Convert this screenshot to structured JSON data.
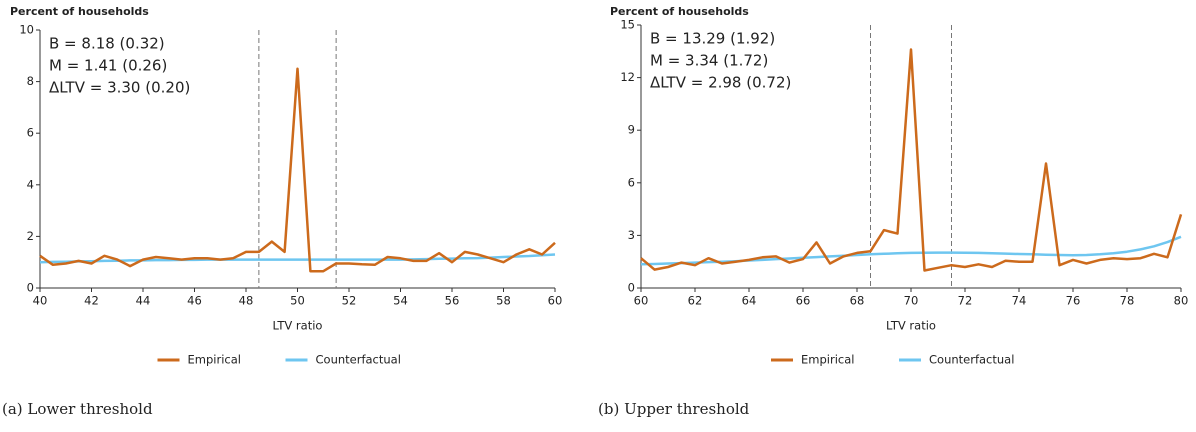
{
  "chart_data": [
    {
      "type": "line",
      "y_title": "Percent of households",
      "x_title": "LTV ratio",
      "caption": "(a) Lower threshold",
      "annotations": [
        "B = 8.18 (0.32)",
        "M = 1.41 (0.26)",
        "ΔLTV = 3.30 (0.20)"
      ],
      "x": [
        40,
        40.5,
        41,
        41.5,
        42,
        42.5,
        43,
        43.5,
        44,
        44.5,
        45,
        45.5,
        46,
        46.5,
        47,
        47.5,
        48,
        48.5,
        49,
        49.5,
        50,
        50.5,
        51,
        51.5,
        52,
        52.5,
        53,
        53.5,
        54,
        54.5,
        55,
        55.5,
        56,
        56.5,
        57,
        57.5,
        58,
        58.5,
        59,
        59.5,
        60
      ],
      "series": [
        {
          "name": "Empirical",
          "color": "#cc6a1c",
          "values": [
            1.25,
            0.9,
            0.95,
            1.05,
            0.95,
            1.25,
            1.1,
            0.85,
            1.1,
            1.2,
            1.15,
            1.1,
            1.15,
            1.15,
            1.1,
            1.15,
            1.4,
            1.4,
            1.8,
            1.4,
            8.5,
            0.65,
            0.65,
            0.95,
            0.95,
            0.92,
            0.9,
            1.2,
            1.15,
            1.05,
            1.05,
            1.35,
            1.0,
            1.4,
            1.3,
            1.15,
            1.0,
            1.3,
            1.5,
            1.3,
            1.75
          ]
        },
        {
          "name": "Counterfactual",
          "color": "#6ec6f0",
          "values": [
            1.0,
            1.01,
            1.02,
            1.03,
            1.04,
            1.05,
            1.06,
            1.07,
            1.07,
            1.08,
            1.08,
            1.09,
            1.09,
            1.1,
            1.1,
            1.1,
            1.1,
            1.1,
            1.1,
            1.1,
            1.1,
            1.1,
            1.1,
            1.1,
            1.1,
            1.1,
            1.1,
            1.1,
            1.1,
            1.11,
            1.12,
            1.13,
            1.14,
            1.15,
            1.16,
            1.18,
            1.2,
            1.22,
            1.24,
            1.27,
            1.3
          ]
        }
      ],
      "vlines": [
        48.5,
        51.5
      ],
      "xlim": [
        40,
        60
      ],
      "xticks": [
        40,
        42,
        44,
        46,
        48,
        50,
        52,
        54,
        56,
        58,
        60
      ],
      "ylim": [
        0,
        10
      ],
      "yticks": [
        0,
        2,
        4,
        6,
        8,
        10
      ],
      "grid": false
    },
    {
      "type": "line",
      "y_title": "Percent of households",
      "x_title": "LTV ratio",
      "caption": "(b) Upper threshold",
      "annotations": [
        "B = 13.29 (1.92)",
        "M = 3.34 (1.72)",
        "ΔLTV = 2.98 (0.72)"
      ],
      "x": [
        60,
        60.5,
        61,
        61.5,
        62,
        62.5,
        63,
        63.5,
        64,
        64.5,
        65,
        65.5,
        66,
        66.5,
        67,
        67.5,
        68,
        68.5,
        69,
        69.5,
        70,
        70.5,
        71,
        71.5,
        72,
        72.5,
        73,
        73.5,
        74,
        74.5,
        75,
        75.5,
        76,
        76.5,
        77,
        77.5,
        78,
        78.5,
        79,
        79.5,
        80
      ],
      "series": [
        {
          "name": "Empirical",
          "color": "#cc6a1c",
          "values": [
            1.7,
            1.05,
            1.2,
            1.45,
            1.3,
            1.7,
            1.4,
            1.5,
            1.6,
            1.75,
            1.8,
            1.45,
            1.65,
            2.6,
            1.4,
            1.8,
            2.0,
            2.1,
            3.3,
            3.1,
            13.6,
            1.0,
            1.15,
            1.3,
            1.2,
            1.35,
            1.2,
            1.55,
            1.5,
            1.5,
            7.1,
            1.3,
            1.6,
            1.4,
            1.6,
            1.7,
            1.65,
            1.7,
            1.95,
            1.75,
            4.2
          ]
        },
        {
          "name": "Counterfactual",
          "color": "#6ec6f0",
          "values": [
            1.35,
            1.37,
            1.4,
            1.42,
            1.45,
            1.48,
            1.5,
            1.53,
            1.57,
            1.6,
            1.65,
            1.68,
            1.72,
            1.76,
            1.8,
            1.84,
            1.88,
            1.92,
            1.95,
            1.98,
            2.0,
            2.01,
            2.02,
            2.02,
            2.01,
            2.0,
            1.98,
            1.96,
            1.94,
            1.92,
            1.9,
            1.88,
            1.87,
            1.88,
            1.92,
            1.98,
            2.07,
            2.2,
            2.38,
            2.62,
            2.92
          ]
        }
      ],
      "vlines": [
        68.5,
        71.5
      ],
      "xlim": [
        60,
        80
      ],
      "xticks": [
        60,
        62,
        64,
        66,
        68,
        70,
        72,
        74,
        76,
        78,
        80
      ],
      "ylim": [
        0,
        15
      ],
      "yticks": [
        0,
        3,
        6,
        9,
        12,
        15
      ],
      "grid": false
    }
  ]
}
